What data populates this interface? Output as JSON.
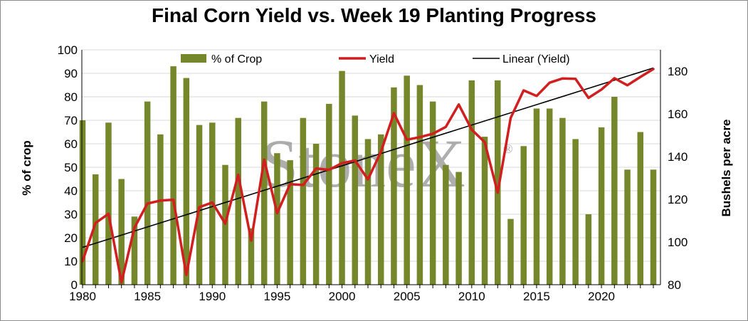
{
  "colors": {
    "bars": "#76862a",
    "yield": "#d11e1e",
    "trend": "#000000",
    "grid": "#d9d9d9",
    "watermark": "#8f8f8f"
  },
  "watermark": {
    "text": "StoneX",
    "mark": "®"
  },
  "chart_data": {
    "type": "bar",
    "title": "Final Corn Yield vs. Week 19 Planting Progress",
    "ylabel": "% of crop",
    "y2label": "Bushels per acre",
    "ylim": [
      0,
      100
    ],
    "y2lim": [
      80,
      190
    ],
    "yticks": [
      "0",
      "10",
      "20",
      "30",
      "40",
      "50",
      "60",
      "70",
      "80",
      "90",
      "100"
    ],
    "y2ticks": [
      "80",
      "100",
      "120",
      "140",
      "160",
      "180"
    ],
    "xticks": [
      "1980",
      "1985",
      "1990",
      "1995",
      "2000",
      "2005",
      "2010",
      "2015",
      "2020"
    ],
    "grid": true,
    "legend_position": "top",
    "legend": [
      "% of Crop",
      "Yield",
      "Linear (Yield)"
    ],
    "x": [
      1980,
      1981,
      1982,
      1983,
      1984,
      1985,
      1986,
      1987,
      1988,
      1989,
      1990,
      1991,
      1992,
      1993,
      1994,
      1995,
      1996,
      1997,
      1998,
      1999,
      2000,
      2001,
      2002,
      2003,
      2004,
      2005,
      2006,
      2007,
      2008,
      2009,
      2010,
      2011,
      2012,
      2013,
      2014,
      2015,
      2016,
      2017,
      2018,
      2019,
      2020,
      2021,
      2022,
      2023,
      2024
    ],
    "series": [
      {
        "name": "% of Crop",
        "type": "bar",
        "axis": "left",
        "values": [
          70,
          47,
          69,
          45,
          29,
          78,
          64,
          93,
          88,
          68,
          69,
          51,
          71,
          24,
          78,
          56,
          53,
          71,
          60,
          77,
          91,
          72,
          62,
          64,
          84,
          89,
          85,
          78,
          51,
          48,
          87,
          63,
          87,
          28,
          59,
          75,
          75,
          71,
          62,
          30,
          67,
          80,
          49,
          65,
          49
        ]
      },
      {
        "name": "Yield",
        "type": "line",
        "axis": "right",
        "values": [
          91.0,
          108.9,
          113.2,
          81.1,
          106.7,
          118.0,
          119.4,
          119.8,
          84.6,
          116.3,
          118.5,
          108.6,
          131.5,
          100.7,
          138.6,
          113.5,
          127.1,
          126.7,
          134.4,
          133.8,
          136.9,
          138.2,
          129.3,
          142.2,
          160.3,
          147.9,
          149.1,
          150.7,
          153.9,
          164.4,
          152.6,
          146.8,
          123.1,
          158.1,
          171.0,
          168.4,
          174.6,
          176.6,
          176.4,
          167.5,
          171.4,
          176.7,
          173.4,
          177.3,
          181.0
        ]
      },
      {
        "name": "Linear (Yield)",
        "type": "line",
        "axis": "right",
        "values_at_ends": {
          "1980": 97.5,
          "2024": 181.5
        }
      }
    ]
  }
}
